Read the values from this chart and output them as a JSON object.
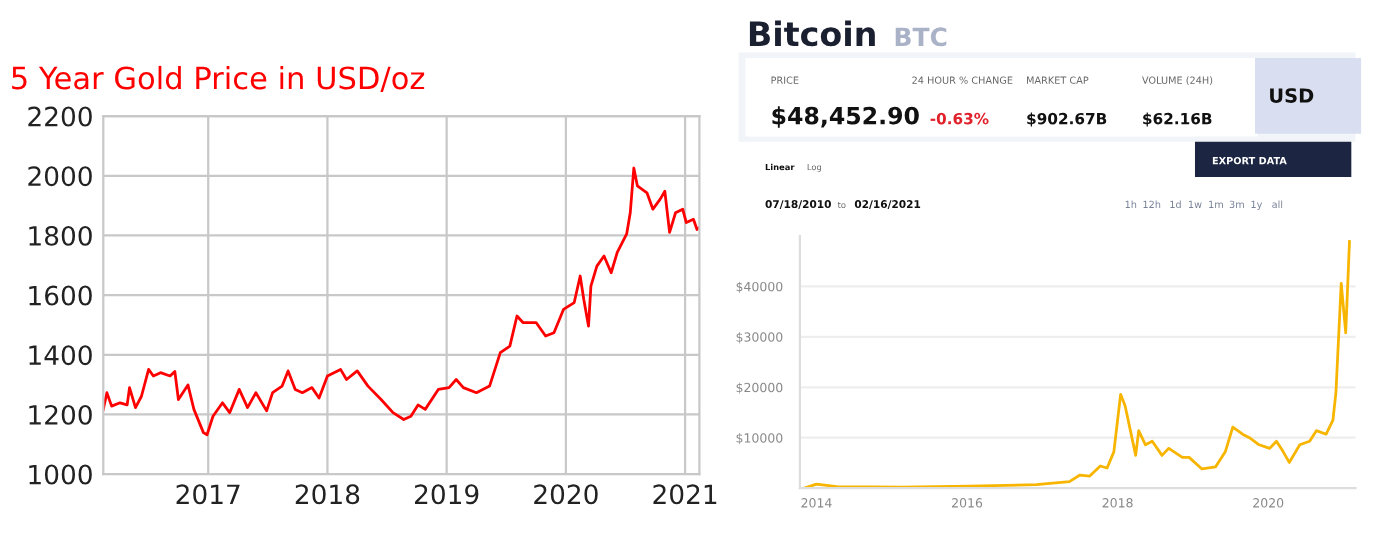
{
  "chart_data": [
    {
      "type": "line",
      "title": "5 Year Gold Price in USD/oz",
      "grid": true,
      "xlim": [
        2016.12,
        2021.12
      ],
      "ylim": [
        1000,
        2200
      ],
      "xticks": [
        2017,
        2018,
        2019,
        2020,
        2021
      ],
      "yticks": [
        1000,
        1200,
        1400,
        1600,
        1800,
        2000,
        2200
      ],
      "x": [
        2016.12,
        2016.15,
        2016.19,
        2016.26,
        2016.32,
        2016.34,
        2016.39,
        2016.44,
        2016.5,
        2016.54,
        2016.6,
        2016.68,
        2016.72,
        2016.75,
        2016.83,
        2016.88,
        2016.96,
        2016.99,
        2017.04,
        2017.12,
        2017.18,
        2017.26,
        2017.33,
        2017.4,
        2017.49,
        2017.54,
        2017.62,
        2017.67,
        2017.73,
        2017.79,
        2017.87,
        2017.93,
        2018.0,
        2018.11,
        2018.16,
        2018.25,
        2018.34,
        2018.45,
        2018.55,
        2018.64,
        2018.7,
        2018.76,
        2018.82,
        2018.93,
        2019.02,
        2019.08,
        2019.14,
        2019.25,
        2019.36,
        2019.45,
        2019.53,
        2019.59,
        2019.64,
        2019.75,
        2019.83,
        2019.9,
        2019.98,
        2020.07,
        2020.12,
        2020.15,
        2020.19,
        2020.21,
        2020.26,
        2020.32,
        2020.38,
        2020.43,
        2020.51,
        2020.54,
        2020.57,
        2020.6,
        2020.68,
        2020.73,
        2020.79,
        2020.83,
        2020.87,
        2020.92,
        2020.98,
        2021.01,
        2021.07,
        2021.1,
        2021.12
      ],
      "series": [
        {
          "color": "#ff0000",
          "values": [
            1217,
            1273,
            1228,
            1239,
            1232,
            1290,
            1223,
            1261,
            1351,
            1329,
            1340,
            1329,
            1344,
            1250,
            1299,
            1217,
            1139,
            1132,
            1194,
            1239,
            1206,
            1284,
            1223,
            1273,
            1212,
            1273,
            1295,
            1346,
            1284,
            1273,
            1290,
            1255,
            1329,
            1351,
            1317,
            1346,
            1295,
            1250,
            1206,
            1183,
            1194,
            1232,
            1217,
            1284,
            1290,
            1317,
            1290,
            1273,
            1295,
            1407,
            1429,
            1530,
            1508,
            1508,
            1463,
            1474,
            1552,
            1575,
            1664,
            1586,
            1496,
            1630,
            1697,
            1731,
            1675,
            1742,
            1805,
            1876,
            2026,
            1966,
            1943,
            1888,
            1921,
            1948,
            1810,
            1876,
            1888,
            1843,
            1854,
            1820,
            1827
          ]
        }
      ]
    },
    {
      "type": "line",
      "title": "Bitcoin",
      "subtitle": "BTC",
      "grid": "y",
      "xlim": [
        2013.78,
        2021.16
      ],
      "ylim": [
        0,
        50000
      ],
      "xticks": [
        2014,
        2016,
        2018,
        2020
      ],
      "yticks": [
        {
          "value": 10000,
          "label": "$10000"
        },
        {
          "value": 20000,
          "label": "$20000"
        },
        {
          "value": 30000,
          "label": "$30000"
        },
        {
          "value": 40000,
          "label": "$40000"
        }
      ],
      "annotations": [
        "PRICE",
        "$48,452.90",
        "24 HOUR % CHANGE",
        "-0.63%",
        "MARKET CAP",
        "$902.67B",
        "VOLUME (24H)",
        "$62.16B",
        "USD",
        "EXPORT DATA",
        "Linear",
        "Log",
        "07/18/2010",
        "to",
        "02/16/2021",
        "1h",
        "12h",
        "1d",
        "1w",
        "1m",
        "3m",
        "1y",
        "all"
      ],
      "x": [
        2013.84,
        2014.0,
        2014.27,
        2015.15,
        2016.04,
        2016.92,
        2017.36,
        2017.5,
        2017.63,
        2017.77,
        2017.86,
        2017.95,
        2018.04,
        2018.1,
        2018.17,
        2018.24,
        2018.28,
        2018.37,
        2018.46,
        2018.59,
        2018.68,
        2018.86,
        2018.95,
        2019.12,
        2019.3,
        2019.43,
        2019.53,
        2019.66,
        2019.75,
        2019.88,
        2020.02,
        2020.11,
        2020.2,
        2020.28,
        2020.42,
        2020.55,
        2020.64,
        2020.77,
        2020.86,
        2020.9,
        2020.97,
        2021.03,
        2021.08
      ],
      "series": [
        {
          "color": "#f7b500",
          "values": [
            0,
            800,
            300,
            200,
            400,
            700,
            1300,
            2600,
            2400,
            4400,
            4000,
            7200,
            18600,
            16300,
            11400,
            6500,
            11400,
            8600,
            9300,
            6500,
            7900,
            6100,
            6100,
            3800,
            4200,
            7200,
            12100,
            10700,
            10000,
            8600,
            7900,
            9300,
            7200,
            5100,
            8600,
            9300,
            11400,
            10700,
            13500,
            19000,
            40600,
            30800,
            48900
          ]
        }
      ]
    }
  ]
}
